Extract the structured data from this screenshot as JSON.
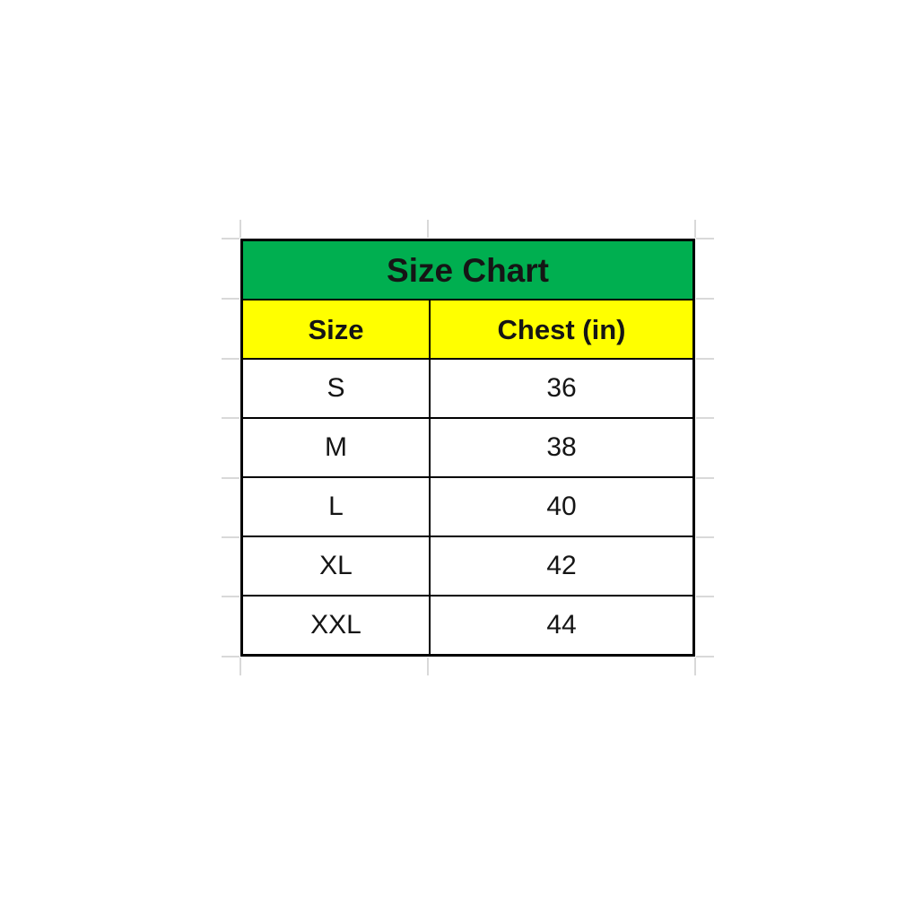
{
  "table": {
    "title": "Size Chart",
    "columns": [
      "Size",
      "Chest (in)"
    ],
    "rows": [
      {
        "size": "S",
        "chest": "36"
      },
      {
        "size": "M",
        "chest": "38"
      },
      {
        "size": "L",
        "chest": "40"
      },
      {
        "size": "XL",
        "chest": "42"
      },
      {
        "size": "XXL",
        "chest": "44"
      }
    ],
    "colors": {
      "title_bg": "#00AF50",
      "header_bg": "#FFFF00",
      "border": "#000000",
      "text": "#151515",
      "gridline": "#D9D9D9"
    }
  },
  "chart_data": {
    "type": "table",
    "title": "Size Chart",
    "columns": [
      "Size",
      "Chest (in)"
    ],
    "categories": [
      "S",
      "M",
      "L",
      "XL",
      "XXL"
    ],
    "values": [
      36,
      38,
      40,
      42,
      44
    ],
    "notes": "Excel-style table; green merged title row, yellow header row, white data rows, faint spreadsheet gridline stubs outside table border"
  }
}
